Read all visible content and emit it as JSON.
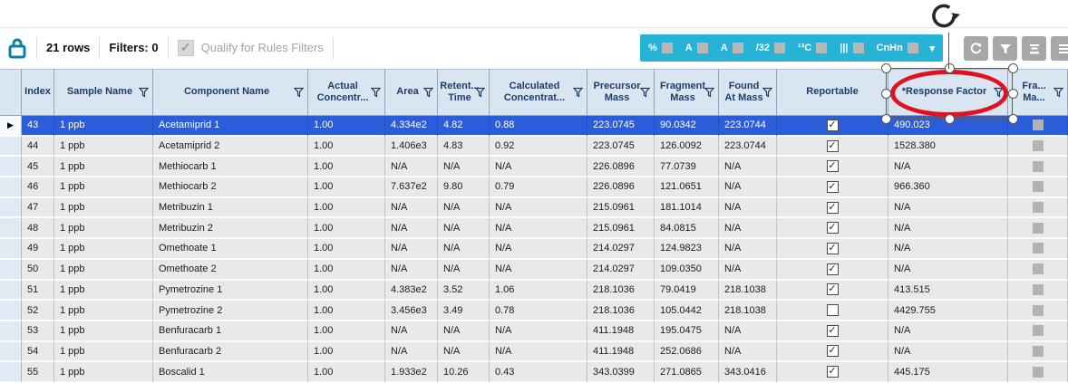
{
  "toolbar": {
    "rows_count": "21 rows",
    "filters": "Filters: 0",
    "qualify_label": "Qualify for Rules Filters",
    "qualify_checked": true,
    "check_glyph": "✓",
    "chevron": "▾",
    "icon_bar_color": "#27b3d6",
    "icons": [
      {
        "name": "percent-icon",
        "glyph": "%"
      },
      {
        "name": "mass-accuracy-a1-icon",
        "glyph": "A"
      },
      {
        "name": "mass-accuracy-a2-icon",
        "glyph": "A"
      },
      {
        "name": "slope-32-icon",
        "glyph": "/32"
      },
      {
        "name": "isotope-c13-icon",
        "glyph": "¹³C"
      },
      {
        "name": "spectrum-bars-icon",
        "glyph": "|||"
      },
      {
        "name": "formula-cnhn-icon",
        "glyph": "CnHn"
      }
    ],
    "right_buttons": [
      "refresh",
      "filter-edit",
      "row-display-compact",
      "row-display-list"
    ]
  },
  "table": {
    "current_row_marker": "▶",
    "columns": [
      {
        "label": "Index",
        "filter": false
      },
      {
        "label": "Sample Name",
        "filter": true
      },
      {
        "label": "Component Name",
        "filter": true
      },
      {
        "label": "Actual\nConcentr...",
        "filter": true
      },
      {
        "label": "Area",
        "filter": true
      },
      {
        "label": "Retent...\nTime",
        "filter": true
      },
      {
        "label": "Calculated\nConcentrat...",
        "filter": true
      },
      {
        "label": "Precursor\nMass",
        "filter": true
      },
      {
        "label": "Fragment\nMass",
        "filter": true
      },
      {
        "label": "Found\nAt Mass",
        "filter": true
      },
      {
        "label": "Reportable",
        "filter": false
      },
      {
        "label": "*Response Factor",
        "filter": true
      },
      {
        "label": "Fra...\nMa...",
        "filter": true
      }
    ],
    "rows": [
      {
        "index": "43",
        "sample": "1 ppb",
        "component": "Acetamiprid 1",
        "actual": "1.00",
        "area": "4.334e2",
        "rt": "4.82",
        "calc": "0.88",
        "precursor": "223.0745",
        "fragment": "90.0342",
        "found": "223.0744",
        "reportable": true,
        "response": "490.023",
        "selected": true
      },
      {
        "index": "44",
        "sample": "1 ppb",
        "component": "Acetamiprid 2",
        "actual": "1.00",
        "area": "1.406e3",
        "rt": "4.83",
        "calc": "0.92",
        "precursor": "223.0745",
        "fragment": "126.0092",
        "found": "223.0744",
        "reportable": true,
        "response": "1528.380",
        "selected": false
      },
      {
        "index": "45",
        "sample": "1 ppb",
        "component": "Methiocarb 1",
        "actual": "1.00",
        "area": "N/A",
        "rt": "N/A",
        "calc": "N/A",
        "precursor": "226.0896",
        "fragment": "77.0739",
        "found": "N/A",
        "reportable": true,
        "response": "N/A",
        "selected": false
      },
      {
        "index": "46",
        "sample": "1 ppb",
        "component": "Methiocarb 2",
        "actual": "1.00",
        "area": "7.637e2",
        "rt": "9.80",
        "calc": "0.79",
        "precursor": "226.0896",
        "fragment": "121.0651",
        "found": "N/A",
        "reportable": true,
        "response": "966.360",
        "selected": false
      },
      {
        "index": "47",
        "sample": "1 ppb",
        "component": "Metribuzin 1",
        "actual": "1.00",
        "area": "N/A",
        "rt": "N/A",
        "calc": "N/A",
        "precursor": "215.0961",
        "fragment": "181.1014",
        "found": "N/A",
        "reportable": true,
        "response": "N/A",
        "selected": false
      },
      {
        "index": "48",
        "sample": "1 ppb",
        "component": "Metribuzin 2",
        "actual": "1.00",
        "area": "N/A",
        "rt": "N/A",
        "calc": "N/A",
        "precursor": "215.0961",
        "fragment": "84.0815",
        "found": "N/A",
        "reportable": true,
        "response": "N/A",
        "selected": false
      },
      {
        "index": "49",
        "sample": "1 ppb",
        "component": "Omethoate 1",
        "actual": "1.00",
        "area": "N/A",
        "rt": "N/A",
        "calc": "N/A",
        "precursor": "214.0297",
        "fragment": "124.9823",
        "found": "N/A",
        "reportable": true,
        "response": "N/A",
        "selected": false
      },
      {
        "index": "50",
        "sample": "1 ppb",
        "component": "Omethoate 2",
        "actual": "1.00",
        "area": "N/A",
        "rt": "N/A",
        "calc": "N/A",
        "precursor": "214.0297",
        "fragment": "109.0350",
        "found": "N/A",
        "reportable": true,
        "response": "N/A",
        "selected": false
      },
      {
        "index": "51",
        "sample": "1 ppb",
        "component": "Pymetrozine 1",
        "actual": "1.00",
        "area": "4.383e2",
        "rt": "3.52",
        "calc": "1.06",
        "precursor": "218.1036",
        "fragment": "79.0419",
        "found": "218.1038",
        "reportable": true,
        "response": "413.515",
        "selected": false
      },
      {
        "index": "52",
        "sample": "1 ppb",
        "component": "Pymetrozine 2",
        "actual": "1.00",
        "area": "3.456e3",
        "rt": "3.49",
        "calc": "0.78",
        "precursor": "218.1036",
        "fragment": "105.0442",
        "found": "218.1038",
        "reportable": false,
        "response": "4429.755",
        "selected": false
      },
      {
        "index": "53",
        "sample": "1 ppb",
        "component": "Benfuracarb 1",
        "actual": "1.00",
        "area": "N/A",
        "rt": "N/A",
        "calc": "N/A",
        "precursor": "411.1948",
        "fragment": "195.0475",
        "found": "N/A",
        "reportable": true,
        "response": "N/A",
        "selected": false
      },
      {
        "index": "54",
        "sample": "1 ppb",
        "component": "Benfuracarb 2",
        "actual": "1.00",
        "area": "N/A",
        "rt": "N/A",
        "calc": "N/A",
        "precursor": "411.1948",
        "fragment": "252.0686",
        "found": "N/A",
        "reportable": true,
        "response": "N/A",
        "selected": false
      },
      {
        "index": "55",
        "sample": "1 ppb",
        "component": "Boscalid 1",
        "actual": "1.00",
        "area": "1.933e2",
        "rt": "10.26",
        "calc": "0.43",
        "precursor": "343.0399",
        "fragment": "271.0865",
        "found": "343.0416",
        "reportable": true,
        "response": "445.175",
        "selected": false
      }
    ]
  },
  "annotation": {
    "shape": "ellipse",
    "color": "#e3111f",
    "circled_text": "*Response Factor"
  }
}
